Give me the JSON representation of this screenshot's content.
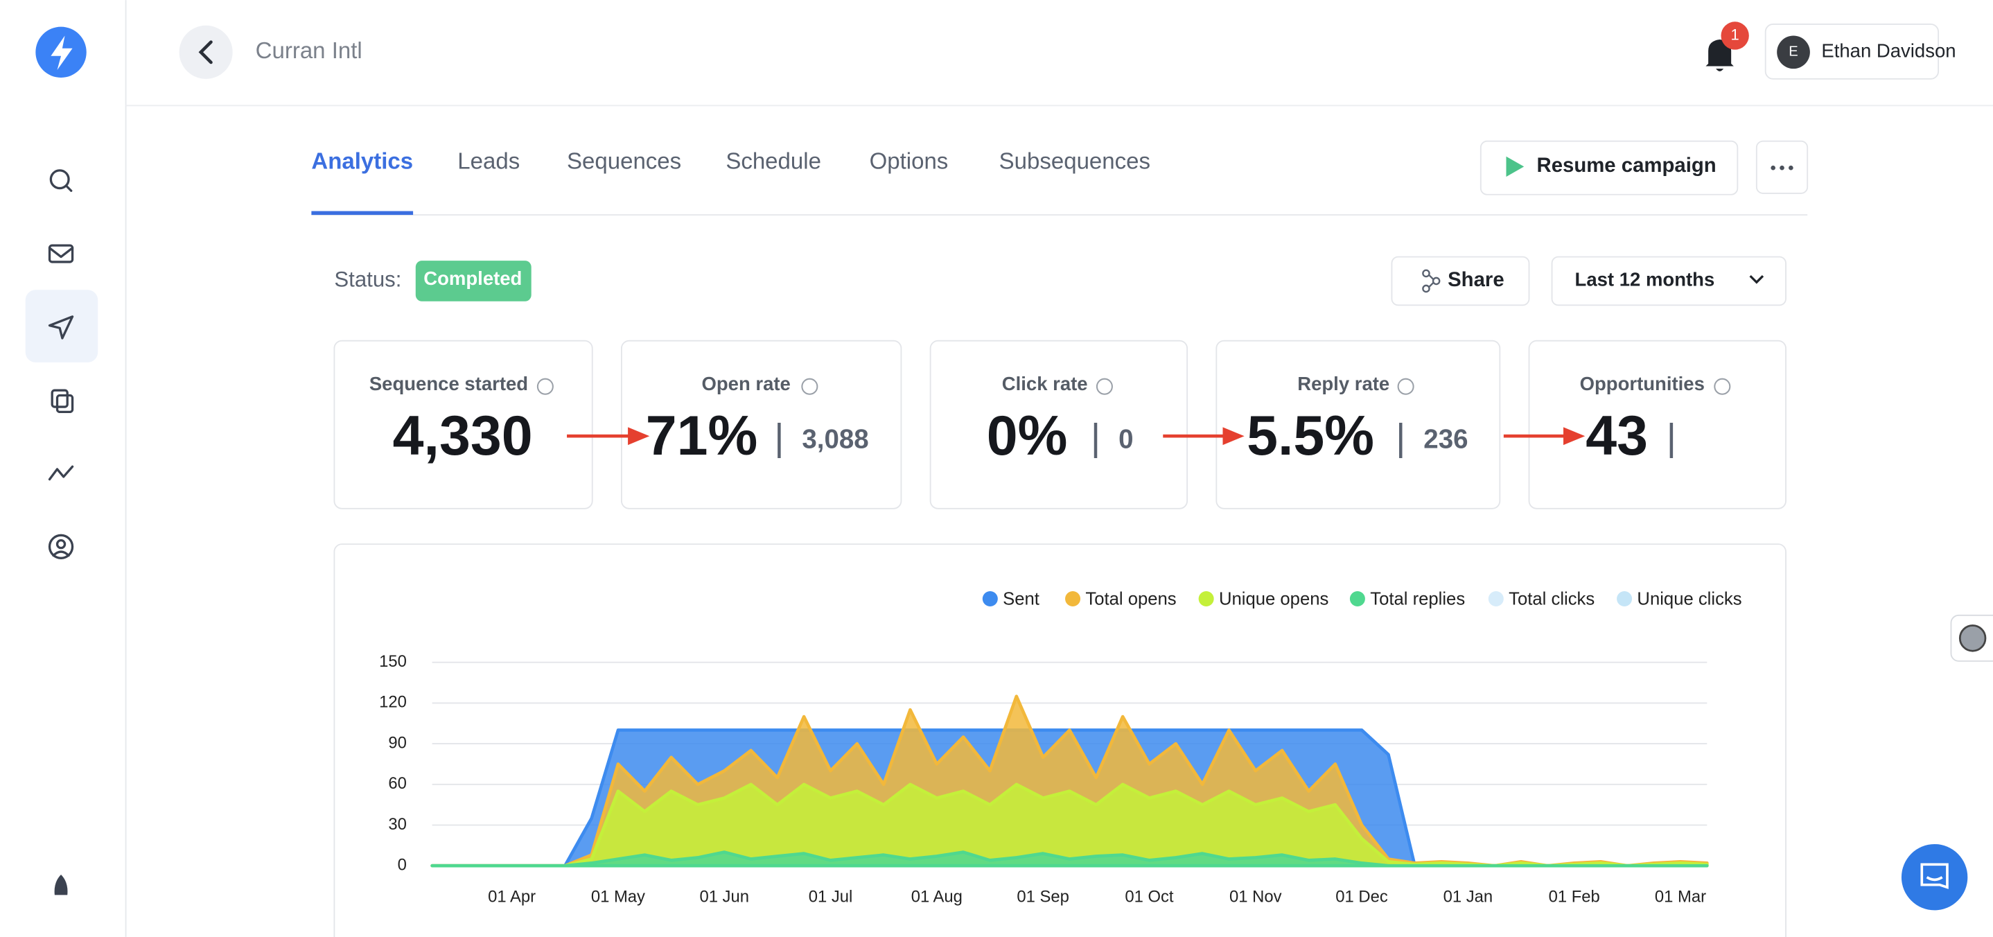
{
  "header": {
    "title": "Curran Intl",
    "notifications": "1",
    "user_initial": "E",
    "user_name": "Ethan Davidson"
  },
  "tabs": [
    "Analytics",
    "Leads",
    "Sequences",
    "Schedule",
    "Options",
    "Subsequences"
  ],
  "actions": {
    "resume": "Resume campaign",
    "share": "Share",
    "range": "Last 12 months"
  },
  "status": {
    "label": "Status:",
    "value": "Completed"
  },
  "stats": [
    {
      "title": "Sequence started",
      "value": "4,330"
    },
    {
      "title": "Open rate",
      "value": "71%",
      "count": "3,088"
    },
    {
      "title": "Click rate",
      "value": "0%",
      "count": "0"
    },
    {
      "title": "Reply rate",
      "value": "5.5%",
      "count": "236"
    },
    {
      "title": "Opportunities",
      "value": "43"
    }
  ],
  "chart_data": {
    "type": "area",
    "categories": [
      null,
      null,
      null,
      "01 Apr",
      null,
      null,
      null,
      "01 May",
      null,
      null,
      null,
      "01 Jun",
      null,
      null,
      null,
      "01 Jul",
      null,
      null,
      null,
      "01 Aug",
      null,
      null,
      null,
      "01 Sep",
      null,
      null,
      null,
      "01 Oct",
      null,
      null,
      null,
      "01 Nov",
      null,
      null,
      null,
      "01 Dec",
      null,
      null,
      null,
      "01 Jan",
      null,
      null,
      null,
      "01 Feb",
      null,
      null,
      null,
      "01 Mar",
      null
    ],
    "series": [
      {
        "name": "Sent",
        "color": "#3d8bef",
        "values": [
          0,
          0,
          0,
          0,
          0,
          0,
          35,
          100,
          100,
          100,
          100,
          100,
          100,
          100,
          100,
          100,
          100,
          100,
          100,
          100,
          100,
          100,
          100,
          100,
          100,
          100,
          100,
          100,
          100,
          100,
          100,
          100,
          100,
          100,
          100,
          100,
          82,
          0,
          0,
          0,
          0,
          0,
          0,
          0,
          0,
          0,
          0,
          0,
          0
        ]
      },
      {
        "name": "Total opens",
        "color": "#f2b83b",
        "values": [
          0,
          0,
          0,
          0,
          0,
          0,
          8,
          75,
          55,
          80,
          60,
          70,
          85,
          65,
          110,
          70,
          90,
          60,
          115,
          75,
          95,
          70,
          125,
          80,
          100,
          65,
          110,
          75,
          90,
          60,
          100,
          70,
          85,
          55,
          75,
          30,
          5,
          2,
          3,
          2,
          0,
          3,
          0,
          2,
          3,
          0,
          2,
          3,
          2
        ]
      },
      {
        "name": "Unique opens",
        "color": "#c4f03a",
        "values": [
          0,
          0,
          0,
          0,
          0,
          0,
          5,
          55,
          40,
          55,
          45,
          50,
          60,
          45,
          60,
          50,
          55,
          45,
          60,
          50,
          55,
          45,
          60,
          50,
          55,
          45,
          60,
          50,
          55,
          45,
          55,
          45,
          50,
          40,
          45,
          20,
          3,
          1,
          2,
          1,
          0,
          2,
          0,
          1,
          2,
          0,
          1,
          2,
          1
        ]
      },
      {
        "name": "Total replies",
        "color": "#4fd88f",
        "values": [
          0,
          0,
          0,
          0,
          0,
          0,
          2,
          5,
          8,
          4,
          6,
          10,
          5,
          7,
          9,
          4,
          6,
          8,
          5,
          7,
          10,
          4,
          6,
          9,
          5,
          7,
          8,
          4,
          6,
          9,
          5,
          6,
          8,
          4,
          5,
          2,
          0,
          0,
          0,
          0,
          0,
          0,
          0,
          0,
          0,
          0,
          0,
          0,
          0
        ]
      },
      {
        "name": "Total clicks",
        "color": "#d7ecfa",
        "values": [
          0,
          0,
          0,
          0,
          0,
          0,
          0,
          0,
          0,
          0,
          0,
          0,
          0,
          0,
          0,
          0,
          0,
          0,
          0,
          0,
          0,
          0,
          0,
          0,
          0,
          0,
          0,
          0,
          0,
          0,
          0,
          0,
          0,
          0,
          0,
          0,
          0,
          0,
          0,
          0,
          0,
          0,
          0,
          0,
          0,
          0,
          0,
          0,
          0
        ]
      },
      {
        "name": "Unique clicks",
        "color": "#c5e5f7",
        "values": [
          0,
          0,
          0,
          0,
          0,
          0,
          0,
          0,
          0,
          0,
          0,
          0,
          0,
          0,
          0,
          0,
          0,
          0,
          0,
          0,
          0,
          0,
          0,
          0,
          0,
          0,
          0,
          0,
          0,
          0,
          0,
          0,
          0,
          0,
          0,
          0,
          0,
          0,
          0,
          0,
          0,
          0,
          0,
          0,
          0,
          0,
          0,
          0,
          0
        ]
      }
    ],
    "ylim": [
      0,
      150
    ],
    "yticks": [
      0,
      30,
      60,
      90,
      120,
      150
    ],
    "grid": true
  }
}
